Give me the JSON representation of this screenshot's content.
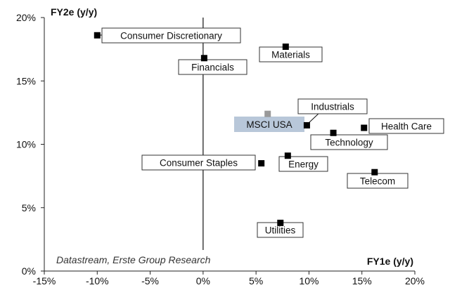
{
  "chart_data": {
    "type": "scatter",
    "xlabel": "FY1e (y/y)",
    "ylabel": "FY2e (y/y)",
    "xlim": [
      -15,
      20
    ],
    "ylim": [
      0,
      20
    ],
    "x_ticks": [
      "-15%",
      "-10%",
      "-5%",
      "0%",
      "5%",
      "10%",
      "15%",
      "20%"
    ],
    "y_ticks": [
      "0%",
      "5%",
      "10%",
      "15%",
      "20%"
    ],
    "annotation": "Datastream, Erste Group Research",
    "points": [
      {
        "label": "Consumer Discretionary",
        "x": -10.0,
        "y": 18.6
      },
      {
        "label": "Materials",
        "x": 7.8,
        "y": 17.7
      },
      {
        "label": "Financials",
        "x": 0.1,
        "y": 16.8
      },
      {
        "label": "MSCI USA",
        "x": 6.1,
        "y": 12.4,
        "highlight": true
      },
      {
        "label": "Industrials",
        "x": 9.8,
        "y": 11.5
      },
      {
        "label": "Health Care",
        "x": 15.2,
        "y": 11.3
      },
      {
        "label": "Technology",
        "x": 12.3,
        "y": 10.9
      },
      {
        "label": "Energy",
        "x": 8.0,
        "y": 9.1
      },
      {
        "label": "Consumer Staples",
        "x": 5.5,
        "y": 8.5
      },
      {
        "label": "Telecom",
        "x": 16.2,
        "y": 7.8
      },
      {
        "label": "Utilities",
        "x": 7.3,
        "y": 3.8
      }
    ]
  }
}
